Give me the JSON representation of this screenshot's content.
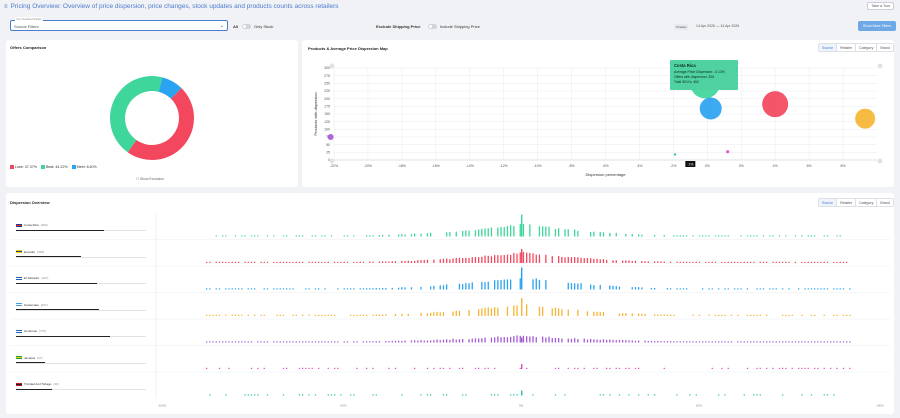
{
  "header": {
    "title": "Pricing Overview: Overview of price dispersion, price changes, stock updates and products counts across retailers",
    "tour_button": "Take a Tour"
  },
  "filters": {
    "select_label": "Your Selected Filters",
    "select_value": "Source Filters",
    "all_label": "All",
    "only_stock_label": "Only Stock",
    "exclude_shipping_label": "Exclude Shipping Price",
    "include_shipping_label": "Include Shipping Price",
    "date_tag": "Timeline",
    "date_range": "14 Apr 2026 — 14 Apr 2026",
    "more_filters_button": "Show More Filters"
  },
  "offers_card": {
    "title": "Offers Comparison",
    "show_exclusion": "Show Exclusion",
    "legend": [
      {
        "label": "Lose: 47.37%",
        "color": "#f2475c"
      },
      {
        "label": "Beat: 44.22%",
        "color": "#3fd69b"
      },
      {
        "label": "Meet: 8.40%",
        "color": "#2aa3f0"
      }
    ],
    "chart_data": {
      "type": "pie",
      "categories": [
        "Lose",
        "Beat",
        "Meet"
      ],
      "values": [
        47.37,
        44.22,
        8.4
      ],
      "colors": [
        "#f2475c",
        "#3fd69b",
        "#2aa3f0"
      ]
    }
  },
  "scatter_card": {
    "title": "Products & Average Price Dispersion Map",
    "tabs": [
      "Source",
      "Retailer",
      "Category",
      "Brand"
    ],
    "active_tab": "Source",
    "tooltip": {
      "title": "Costa Rica",
      "line1": "Average Price Dispersion: -0.13%",
      "line2": "Offers with dispersion: 326",
      "line3": "Total SKU's: 452"
    },
    "cursor_label": "-1%",
    "chart_data": {
      "type": "scatter",
      "xlabel": "Dispersion percentage",
      "ylabel": "Products with dispersion",
      "xlim": [
        -22,
        10
      ],
      "ylim": [
        0,
        300
      ],
      "x_ticks": [
        "-22%",
        "-20%",
        "-18%",
        "-16%",
        "-14%",
        "-12%",
        "-10%",
        "-8%",
        "-6%",
        "-4%",
        "-2%",
        "0%",
        "2%",
        "4%",
        "6%",
        "8%"
      ],
      "y_ticks": [
        "0",
        "25",
        "50",
        "75",
        "100",
        "125",
        "150",
        "175",
        "200",
        "225",
        "250",
        "275",
        "300"
      ],
      "points": [
        {
          "name": "Costa Rica",
          "x": -0.13,
          "y": 250,
          "r": 15,
          "color": "#3fd69b"
        },
        {
          "name": "El Salvador",
          "x": 0.2,
          "y": 168,
          "r": 11,
          "color": "#2aa3f0"
        },
        {
          "name": "Ecuador",
          "x": 4.0,
          "y": 182,
          "r": 13,
          "color": "#f2475c"
        },
        {
          "name": "Guatemala",
          "x": 9.3,
          "y": 135,
          "r": 10,
          "color": "#f5b532"
        },
        {
          "name": "Honduras",
          "x": -22.2,
          "y": 75,
          "r": 3,
          "color": "#a55ad6"
        },
        {
          "name": "Jamaica",
          "x": 1.2,
          "y": 27,
          "r": 1.6,
          "color": "#e04fc9"
        },
        {
          "name": "Trinidad and Tobago",
          "x": -1.9,
          "y": 18,
          "r": 1.2,
          "color": "#2abfa8"
        }
      ]
    }
  },
  "dispersion_card": {
    "title": "Dispersion Overview",
    "tabs": [
      "Source",
      "Retailer",
      "Category",
      "Brand"
    ],
    "active_tab": "Source",
    "x_ticks": [
      "-100%",
      "-50%",
      "0%",
      "50%",
      "100%"
    ],
    "rows": [
      {
        "name": "Costa Rica",
        "count": "(452)",
        "bar": 0.68,
        "color": "#3fd69b",
        "flag_top": "#1f3f8f",
        "flag_mid": "#d8232a",
        "density": 0.55,
        "peak": 1.0
      },
      {
        "name": "Ecuador",
        "count": "(318)",
        "bar": 0.5,
        "color": "#f2475c",
        "flag_top": "#f5d000",
        "flag_mid": "#1f3f8f",
        "density": 0.85,
        "peak": 0.8
      },
      {
        "name": "El Salvador",
        "count": "(427)",
        "bar": 0.62,
        "color": "#2aa3f0",
        "flag_top": "#1f5fbf",
        "flag_mid": "#ffffff",
        "density": 0.55,
        "peak": 1.0
      },
      {
        "name": "Guatemala",
        "count": "(437)",
        "bar": 0.64,
        "color": "#f5b532",
        "flag_top": "#4a9be0",
        "flag_mid": "#ffffff",
        "density": 0.6,
        "peak": 0.95
      },
      {
        "name": "Honduras",
        "count": "(776)",
        "bar": 0.72,
        "color": "#a55ad6",
        "flag_top": "#1f5fbf",
        "flag_mid": "#ffffff",
        "density": 0.95,
        "peak": 0.45
      },
      {
        "name": "Jamaica",
        "count": "(67)",
        "bar": 0.22,
        "color": "#e04fc9",
        "flag_top": "#1f9a3a",
        "flag_mid": "#f5d000",
        "density": 0.35,
        "peak": 0.4
      },
      {
        "name": "Trinidad And Tobago",
        "count": "(40)",
        "bar": 0.28,
        "color": "#2abfa8",
        "flag_top": "#c8102e",
        "flag_mid": "#222222",
        "density": 0.35,
        "peak": 0.4
      }
    ]
  }
}
